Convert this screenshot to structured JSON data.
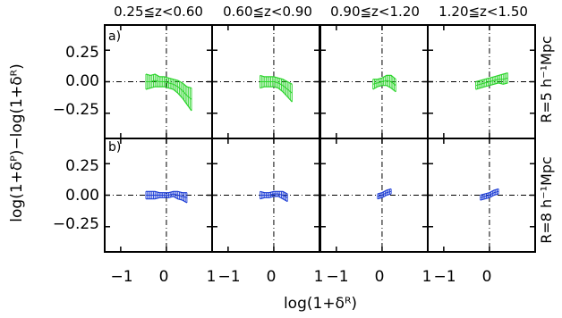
{
  "chart_data": {
    "type": "line",
    "column_titles": [
      "0.25≦z<0.60",
      "0.60≦z<0.90",
      "0.90≦z<1.20",
      "1.20≦z<1.50"
    ],
    "row_labels": [
      "R=5 h⁻¹Mpc",
      "R=8 h⁻¹Mpc"
    ],
    "panel_tags": [
      "a)",
      "b)"
    ],
    "xlabel": "log(1+δᴿ)",
    "ylabel": "log(1+δᴾ)−log(1+δᴿ)",
    "xlim": [
      -1.35,
      1.0
    ],
    "ylim": [
      -0.45,
      0.45
    ],
    "x_tick_labels": [
      "−1",
      "0",
      "1"
    ],
    "y_ticks": [
      0.25,
      0.0,
      -0.25
    ],
    "y_tick_labels": [
      "0.25",
      "0.00",
      "−0.25"
    ],
    "colors": {
      "row1": "#2bd42b",
      "row2": "#1f3fd6",
      "axes": "#000000"
    },
    "panels": [
      {
        "row": 0,
        "col": 0,
        "x": [
          -0.45,
          -0.35,
          -0.25,
          -0.15,
          -0.05,
          0.05,
          0.15,
          0.25,
          0.35,
          0.45,
          0.55
        ],
        "y": [
          0.0,
          0.0,
          0.01,
          0.0,
          0.0,
          -0.01,
          -0.02,
          -0.04,
          -0.07,
          -0.11,
          -0.14
        ],
        "err": [
          0.06,
          0.05,
          0.05,
          0.04,
          0.04,
          0.04,
          0.04,
          0.05,
          0.06,
          0.07,
          0.09
        ]
      },
      {
        "row": 0,
        "col": 1,
        "x": [
          -0.3,
          -0.2,
          -0.1,
          0.0,
          0.1,
          0.2,
          0.3,
          0.4
        ],
        "y": [
          0.0,
          0.0,
          0.0,
          0.0,
          -0.01,
          -0.03,
          -0.06,
          -0.09
        ],
        "err": [
          0.05,
          0.04,
          0.04,
          0.04,
          0.04,
          0.05,
          0.06,
          0.07
        ]
      },
      {
        "row": 0,
        "col": 2,
        "x": [
          -0.2,
          -0.1,
          0.0,
          0.1,
          0.2,
          0.3
        ],
        "y": [
          -0.02,
          -0.01,
          0.0,
          0.01,
          0.0,
          -0.03
        ],
        "err": [
          0.04,
          0.03,
          0.03,
          0.04,
          0.05,
          0.05
        ]
      },
      {
        "row": 0,
        "col": 3,
        "x": [
          -0.3,
          -0.2,
          -0.1,
          0.0,
          0.1,
          0.2,
          0.3,
          0.4
        ],
        "y": [
          -0.03,
          -0.02,
          -0.01,
          0.0,
          0.01,
          0.02,
          0.02,
          0.03
        ],
        "err": [
          0.03,
          0.03,
          0.03,
          0.03,
          0.03,
          0.03,
          0.04,
          0.04
        ]
      },
      {
        "row": 1,
        "col": 0,
        "x": [
          -0.45,
          -0.35,
          -0.25,
          -0.15,
          -0.05,
          0.05,
          0.15,
          0.25,
          0.35,
          0.45
        ],
        "y": [
          0.0,
          0.0,
          0.0,
          0.0,
          0.0,
          0.0,
          0.01,
          0.0,
          -0.01,
          -0.02
        ],
        "err": [
          0.03,
          0.03,
          0.03,
          0.02,
          0.02,
          0.02,
          0.02,
          0.03,
          0.03,
          0.04
        ]
      },
      {
        "row": 1,
        "col": 1,
        "x": [
          -0.3,
          -0.2,
          -0.1,
          0.0,
          0.1,
          0.2,
          0.3
        ],
        "y": [
          0.0,
          0.0,
          0.0,
          0.01,
          0.01,
          0.0,
          -0.02
        ],
        "err": [
          0.03,
          0.02,
          0.02,
          0.02,
          0.02,
          0.03,
          0.03
        ]
      },
      {
        "row": 1,
        "col": 2,
        "x": [
          -0.1,
          0.0,
          0.1,
          0.2
        ],
        "y": [
          -0.01,
          0.0,
          0.02,
          0.03
        ],
        "err": [
          0.02,
          0.02,
          0.02,
          0.02
        ]
      },
      {
        "row": 1,
        "col": 3,
        "x": [
          -0.2,
          -0.1,
          0.0,
          0.1,
          0.2
        ],
        "y": [
          -0.02,
          -0.01,
          0.0,
          0.02,
          0.03
        ],
        "err": [
          0.02,
          0.02,
          0.02,
          0.02,
          0.02
        ]
      }
    ]
  }
}
